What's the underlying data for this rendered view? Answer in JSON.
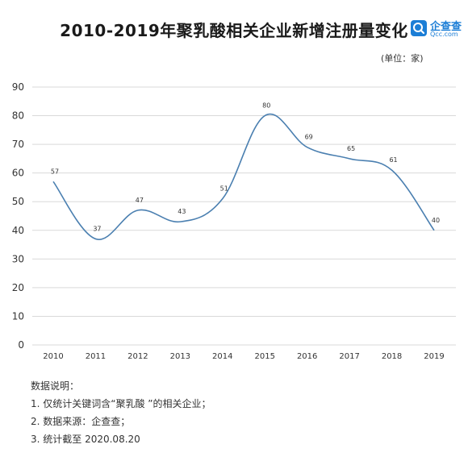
{
  "header": {
    "title": "2010-2019年聚乳酸相关企业新增注册量变化",
    "unit_label": "(单位：家)",
    "logo_name": "企查查",
    "logo_sub": "Qcc.com"
  },
  "notes": {
    "heading": "数据说明：",
    "items": [
      "1. 仅统计关键词含“聚乳酸 ”的相关企业；",
      "2. 数据来源：企查查；",
      "3. 统计截至 2020.08.20"
    ]
  },
  "colors": {
    "line": "#4a7fb0",
    "grid": "#d9d9d9",
    "axis_text": "#333333",
    "logo": "#1c7ed6"
  },
  "chart_data": {
    "type": "line",
    "title": "2010-2019年聚乳酸相关企业新增注册量变化",
    "xlabel": "",
    "ylabel": "",
    "categories": [
      "2010",
      "2011",
      "2012",
      "2013",
      "2014",
      "2015",
      "2016",
      "2017",
      "2018",
      "2019"
    ],
    "series": [
      {
        "values": [
          57,
          37,
          47,
          43,
          51,
          80,
          69,
          65,
          61,
          40
        ]
      }
    ],
    "data_labels": [
      "57",
      "37",
      "47",
      "43",
      "51",
      "80",
      "69",
      "65",
      "61",
      "40"
    ],
    "ylim": [
      0,
      90
    ],
    "yticks": [
      "0",
      "10",
      "20",
      "30",
      "40",
      "50",
      "60",
      "70",
      "80",
      "90"
    ],
    "grid": true,
    "smooth": true,
    "legend": "none"
  }
}
